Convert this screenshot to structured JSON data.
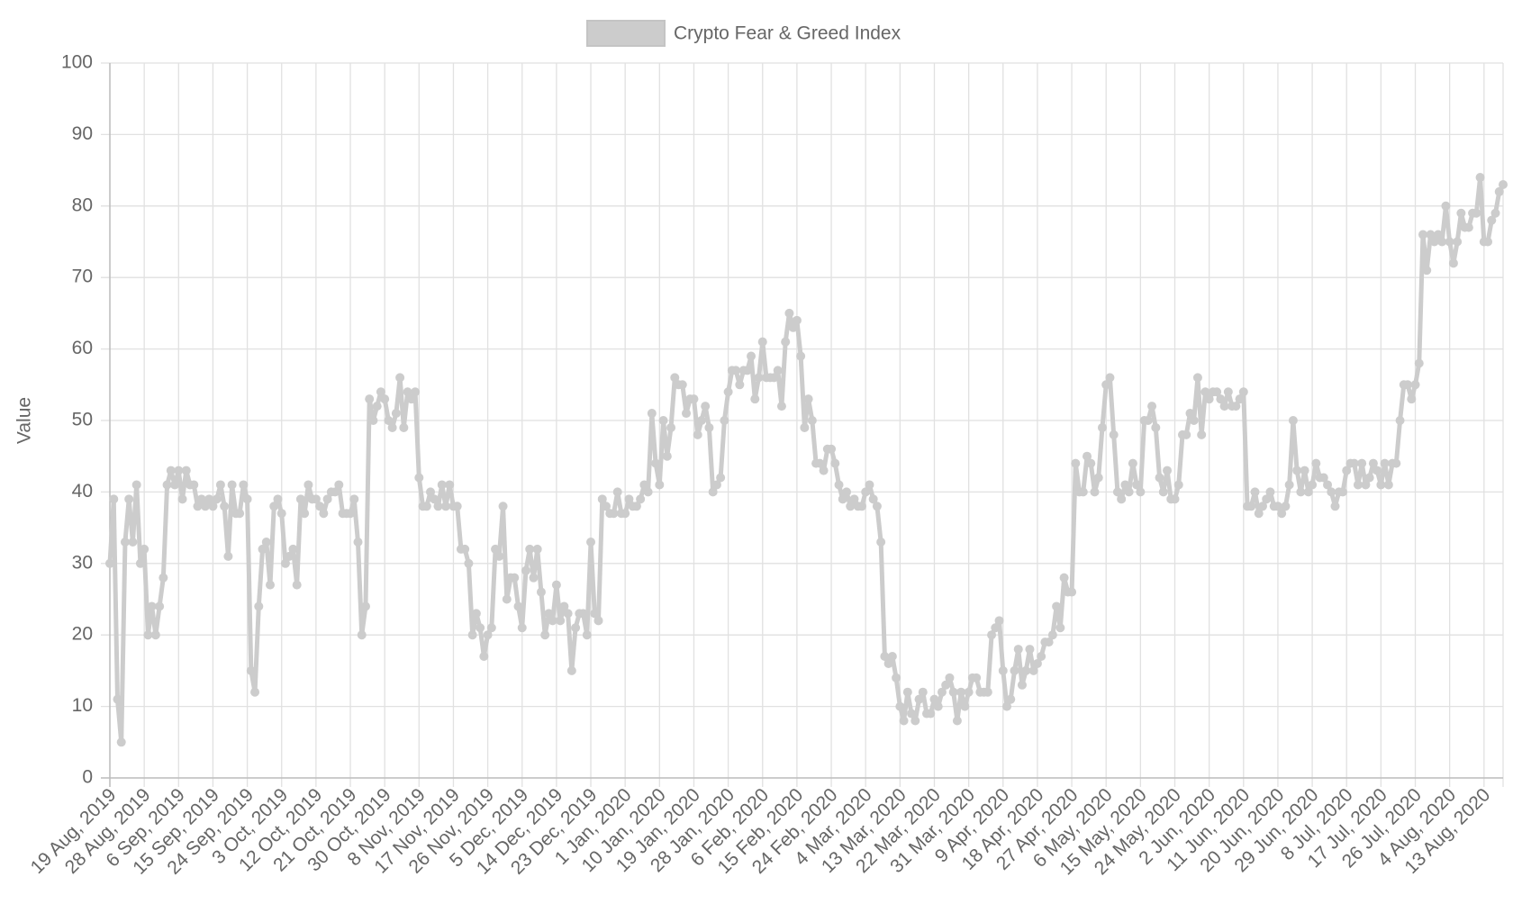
{
  "chart_data": {
    "type": "line",
    "legend_position": "top",
    "y_label": "Value",
    "grid": true,
    "ylim": [
      0,
      100
    ],
    "yticks": [
      0,
      10,
      20,
      30,
      40,
      50,
      60,
      70,
      80,
      90,
      100
    ],
    "categories": [
      "19 Aug, 2019",
      null,
      null,
      null,
      null,
      null,
      null,
      null,
      null,
      "28 Aug, 2019",
      null,
      null,
      null,
      null,
      null,
      null,
      null,
      null,
      "6 Sep, 2019",
      null,
      null,
      null,
      null,
      null,
      null,
      null,
      null,
      "15 Sep, 2019",
      null,
      null,
      null,
      null,
      null,
      null,
      null,
      null,
      "24 Sep, 2019",
      null,
      null,
      null,
      null,
      null,
      null,
      null,
      null,
      "3 Oct, 2019",
      null,
      null,
      null,
      null,
      null,
      null,
      null,
      null,
      "12 Oct, 2019",
      null,
      null,
      null,
      null,
      null,
      null,
      null,
      null,
      "21 Oct, 2019",
      null,
      null,
      null,
      null,
      null,
      null,
      null,
      null,
      "30 Oct, 2019",
      null,
      null,
      null,
      null,
      null,
      null,
      null,
      null,
      "8 Nov, 2019",
      null,
      null,
      null,
      null,
      null,
      null,
      null,
      null,
      "17 Nov, 2019",
      null,
      null,
      null,
      null,
      null,
      null,
      null,
      null,
      "26 Nov, 2019",
      null,
      null,
      null,
      null,
      null,
      null,
      null,
      null,
      "5 Dec, 2019",
      null,
      null,
      null,
      null,
      null,
      null,
      null,
      null,
      "14 Dec, 2019",
      null,
      null,
      null,
      null,
      null,
      null,
      null,
      null,
      "23 Dec, 2019",
      null,
      null,
      null,
      null,
      null,
      null,
      null,
      null,
      "1 Jan, 2020",
      null,
      null,
      null,
      null,
      null,
      null,
      null,
      null,
      "10 Jan, 2020",
      null,
      null,
      null,
      null,
      null,
      null,
      null,
      null,
      "19 Jan, 2020",
      null,
      null,
      null,
      null,
      null,
      null,
      null,
      null,
      "28 Jan, 2020",
      null,
      null,
      null,
      null,
      null,
      null,
      null,
      null,
      "6 Feb, 2020",
      null,
      null,
      null,
      null,
      null,
      null,
      null,
      null,
      "15 Feb, 2020",
      null,
      null,
      null,
      null,
      null,
      null,
      null,
      null,
      "24 Feb, 2020",
      null,
      null,
      null,
      null,
      null,
      null,
      null,
      null,
      "4 Mar, 2020",
      null,
      null,
      null,
      null,
      null,
      null,
      null,
      null,
      "13 Mar, 2020",
      null,
      null,
      null,
      null,
      null,
      null,
      null,
      null,
      "22 Mar, 2020",
      null,
      null,
      null,
      null,
      null,
      null,
      null,
      null,
      "31 Mar, 2020",
      null,
      null,
      null,
      null,
      null,
      null,
      null,
      null,
      "9 Apr, 2020",
      null,
      null,
      null,
      null,
      null,
      null,
      null,
      null,
      "18 Apr, 2020",
      null,
      null,
      null,
      null,
      null,
      null,
      null,
      null,
      "27 Apr, 2020",
      null,
      null,
      null,
      null,
      null,
      null,
      null,
      null,
      "6 May, 2020",
      null,
      null,
      null,
      null,
      null,
      null,
      null,
      null,
      "15 May, 2020",
      null,
      null,
      null,
      null,
      null,
      null,
      null,
      null,
      "24 May, 2020",
      null,
      null,
      null,
      null,
      null,
      null,
      null,
      null,
      "2 Jun, 2020",
      null,
      null,
      null,
      null,
      null,
      null,
      null,
      null,
      "11 Jun, 2020",
      null,
      null,
      null,
      null,
      null,
      null,
      null,
      null,
      "20 Jun, 2020",
      null,
      null,
      null,
      null,
      null,
      null,
      null,
      null,
      "29 Jun, 2020",
      null,
      null,
      null,
      null,
      null,
      null,
      null,
      null,
      "8 Jul, 2020",
      null,
      null,
      null,
      null,
      null,
      null,
      null,
      null,
      "17 Jul, 2020",
      null,
      null,
      null,
      null,
      null,
      null,
      null,
      null,
      "26 Jul, 2020",
      null,
      null,
      null,
      null,
      null,
      null,
      null,
      null,
      "4 Aug, 2020",
      null,
      null,
      null,
      null,
      null,
      null,
      null,
      null,
      "13 Aug, 2020",
      null,
      null,
      null,
      null,
      null
    ],
    "series": [
      {
        "name": "Crypto Fear & Greed Index",
        "color": "#cccccc",
        "values": [
          30,
          39,
          11,
          5,
          33,
          39,
          33,
          41,
          30,
          32,
          20,
          24,
          20,
          24,
          28,
          41,
          43,
          41,
          43,
          39,
          43,
          41,
          41,
          38,
          39,
          38,
          39,
          38,
          39,
          41,
          38,
          31,
          41,
          37,
          37,
          41,
          39,
          15,
          12,
          24,
          32,
          33,
          27,
          38,
          39,
          37,
          30,
          31,
          32,
          27,
          39,
          37,
          41,
          39,
          39,
          38,
          37,
          39,
          40,
          40,
          41,
          37,
          37,
          37,
          39,
          33,
          20,
          24,
          53,
          50,
          52,
          54,
          53,
          50,
          49,
          51,
          56,
          49,
          54,
          53,
          54,
          42,
          38,
          38,
          40,
          39,
          38,
          41,
          38,
          41,
          38,
          38,
          32,
          32,
          30,
          20,
          23,
          21,
          17,
          20,
          21,
          32,
          31,
          38,
          25,
          28,
          28,
          24,
          21,
          29,
          32,
          28,
          32,
          26,
          20,
          23,
          22,
          27,
          22,
          24,
          23,
          15,
          21,
          23,
          23,
          20,
          33,
          23,
          22,
          39,
          38,
          37,
          37,
          40,
          37,
          37,
          39,
          38,
          38,
          39,
          41,
          40,
          51,
          44,
          41,
          50,
          45,
          49,
          56,
          55,
          55,
          51,
          53,
          53,
          48,
          50,
          52,
          49,
          40,
          41,
          42,
          50,
          54,
          57,
          57,
          55,
          57,
          57,
          59,
          53,
          56,
          61,
          56,
          56,
          56,
          57,
          52,
          61,
          65,
          63,
          64,
          59,
          49,
          53,
          50,
          44,
          44,
          43,
          46,
          46,
          44,
          41,
          39,
          40,
          38,
          39,
          38,
          38,
          40,
          41,
          39,
          38,
          33,
          17,
          16,
          17,
          14,
          10,
          8,
          12,
          9,
          8,
          11,
          12,
          9,
          9,
          11,
          10,
          12,
          13,
          14,
          12,
          8,
          12,
          10,
          12,
          14,
          14,
          12,
          12,
          12,
          20,
          21,
          22,
          15,
          10,
          11,
          15,
          18,
          13,
          15,
          18,
          15,
          16,
          17,
          19,
          19,
          20,
          24,
          21,
          28,
          26,
          26,
          44,
          40,
          40,
          45,
          44,
          40,
          42,
          49,
          55,
          56,
          48,
          40,
          39,
          41,
          40,
          44,
          41,
          40,
          50,
          50,
          52,
          49,
          42,
          40,
          43,
          39,
          39,
          41,
          48,
          48,
          51,
          50,
          56,
          48,
          54,
          53,
          54,
          54,
          53,
          52,
          54,
          52,
          52,
          53,
          54,
          38,
          38,
          40,
          37,
          38,
          39,
          40,
          38,
          38,
          37,
          38,
          41,
          50,
          43,
          40,
          43,
          40,
          41,
          44,
          42,
          42,
          41,
          40,
          38,
          40,
          40,
          43,
          44,
          44,
          41,
          44,
          41,
          42,
          44,
          43,
          41,
          44,
          41,
          44,
          44,
          50,
          55,
          55,
          53,
          55,
          58,
          76,
          71,
          76,
          75,
          76,
          75,
          80,
          75,
          72,
          75,
          79,
          77,
          77,
          79,
          79,
          84,
          75,
          75,
          78,
          79,
          82,
          83
        ]
      }
    ]
  }
}
